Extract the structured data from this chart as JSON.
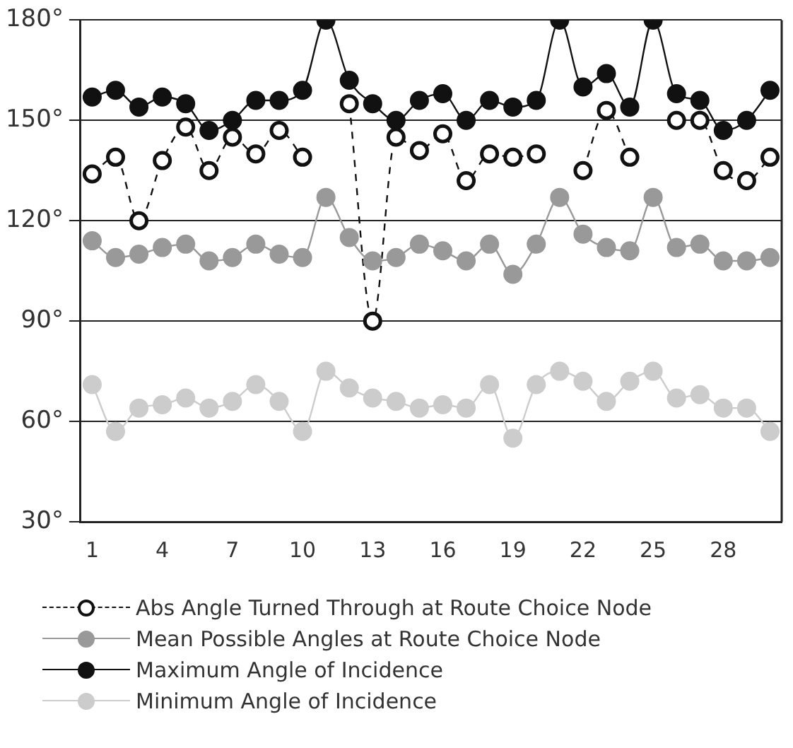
{
  "chart_data": {
    "type": "line",
    "categories": [
      "1",
      null,
      null,
      "4",
      null,
      null,
      "7",
      null,
      null,
      "10",
      null,
      null,
      "13",
      null,
      null,
      "16",
      null,
      null,
      "19",
      null,
      null,
      "22",
      null,
      null,
      "25",
      null,
      null,
      "28",
      null,
      null
    ],
    "series": [
      {
        "name": "Abs Angle Turned Through at Route Choice Node",
        "color": "#111111",
        "line_style": "dashed",
        "values": [
          134,
          139,
          120,
          138,
          148,
          135,
          145,
          140,
          147,
          139,
          null,
          155,
          90,
          145,
          141,
          146,
          132,
          140,
          139,
          140,
          null,
          135,
          153,
          139,
          null,
          150,
          150,
          135,
          132,
          139
        ]
      },
      {
        "name": "Mean Possible Angles at Route Choice Node",
        "color": "#999999",
        "line_style": "solid",
        "values": [
          114,
          109,
          110,
          112,
          113,
          108,
          109,
          113,
          110,
          109,
          127,
          115,
          108,
          109,
          113,
          111,
          108,
          113,
          104,
          113,
          127,
          116,
          112,
          111,
          127,
          112,
          113,
          108,
          108,
          109
        ]
      },
      {
        "name": "Maximum Angle of Incidence",
        "color": "#111111",
        "line_style": "solid",
        "values": [
          157,
          159,
          154,
          157,
          155,
          147,
          150,
          156,
          156,
          159,
          180,
          162,
          155,
          150,
          156,
          158,
          150,
          156,
          154,
          156,
          180,
          160,
          164,
          154,
          180,
          158,
          156,
          147,
          150,
          159
        ]
      },
      {
        "name": "Minimum Angle of Incidence",
        "color": "#cccccc",
        "line_style": "solid",
        "values": [
          71,
          57,
          64,
          65,
          67,
          64,
          66,
          71,
          66,
          57,
          75,
          70,
          67,
          66,
          64,
          65,
          64,
          71,
          55,
          71,
          75,
          72,
          66,
          72,
          75,
          67,
          68,
          64,
          64,
          57
        ]
      }
    ],
    "ylim": [
      30,
      180
    ],
    "yticks": [
      {
        "value": 30,
        "label": "30°"
      },
      {
        "value": 60,
        "label": "60°"
      },
      {
        "value": 90,
        "label": "90°"
      },
      {
        "value": 120,
        "label": "120°"
      },
      {
        "value": 150,
        "label": "150°"
      },
      {
        "value": 180,
        "label": "180°"
      }
    ],
    "grid": "y",
    "marker": "circle",
    "legend": "bottom"
  }
}
